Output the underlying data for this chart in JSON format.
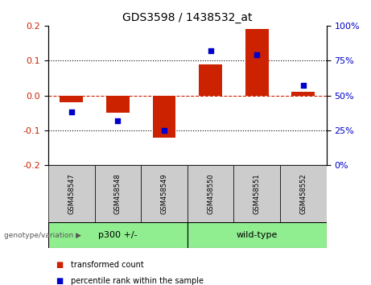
{
  "title": "GDS3598 / 1438532_at",
  "samples": [
    "GSM458547",
    "GSM458548",
    "GSM458549",
    "GSM458550",
    "GSM458551",
    "GSM458552"
  ],
  "red_values": [
    -0.02,
    -0.05,
    -0.12,
    0.09,
    0.19,
    0.01
  ],
  "blue_values": [
    38,
    32,
    25,
    82,
    79,
    57
  ],
  "ylim_left": [
    -0.2,
    0.2
  ],
  "ylim_right": [
    0,
    100
  ],
  "groups": [
    {
      "label": "p300 +/-",
      "start": 0,
      "end": 3
    },
    {
      "label": "wild-type",
      "start": 3,
      "end": 6
    }
  ],
  "group_header": "genotype/variation",
  "left_yticks": [
    -0.2,
    -0.1,
    0.0,
    0.1,
    0.2
  ],
  "right_yticks": [
    0,
    25,
    50,
    75,
    100
  ],
  "red_color": "#CC2200",
  "blue_color": "#0000CC",
  "bar_width": 0.5,
  "sample_box_color": "#CCCCCC",
  "group_box_color": "#90EE90",
  "legend_items": [
    {
      "label": "transformed count",
      "color": "#CC2200"
    },
    {
      "label": "percentile rank within the sample",
      "color": "#0000CC"
    }
  ]
}
